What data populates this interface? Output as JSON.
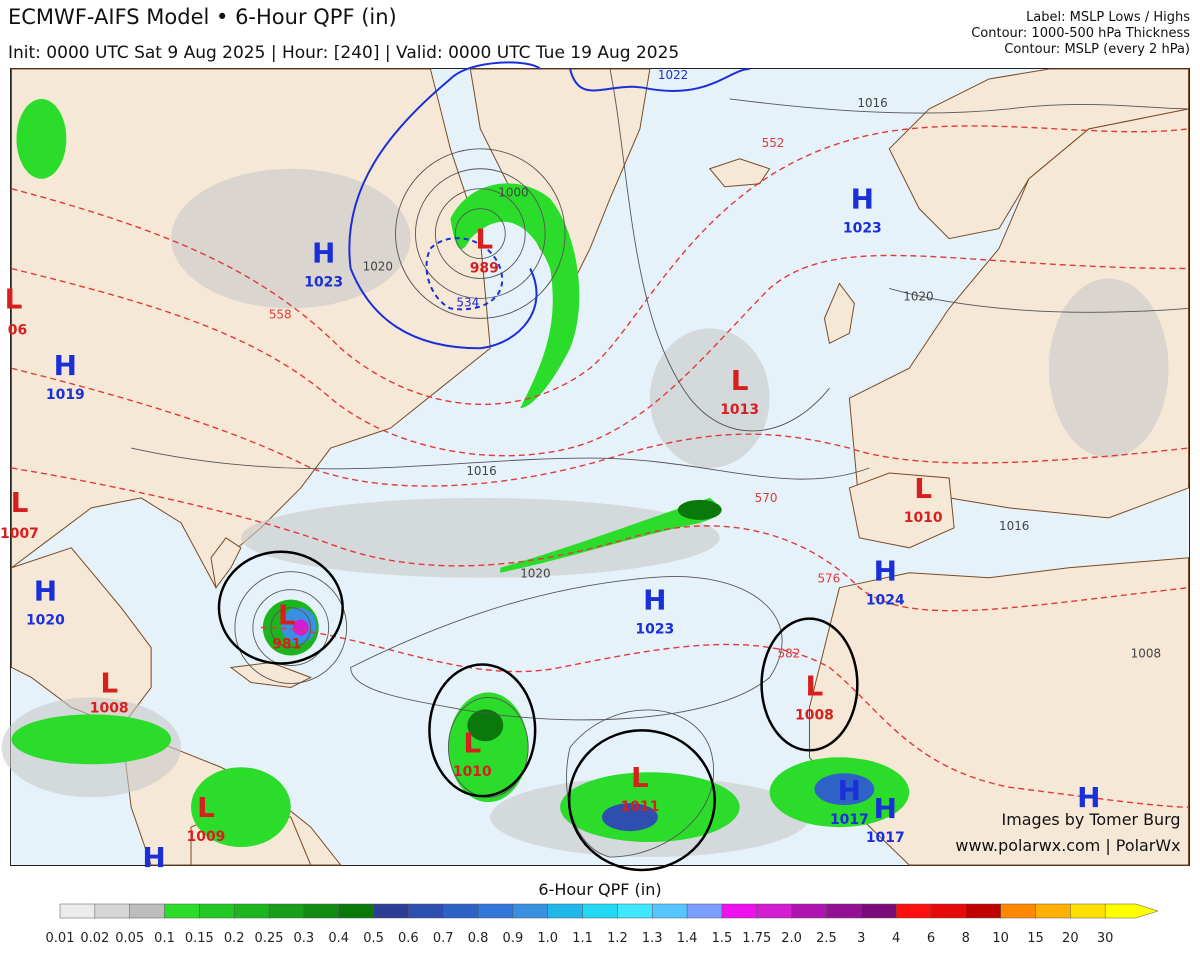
{
  "header": {
    "title": "ECMWF-AIFS Model • 6-Hour QPF (in)",
    "subtitle": "Init: 0000 UTC Sat 9 Aug 2025 | Hour: [240] | Valid: 0000 UTC Tue 19 Aug 2025",
    "legend_lines": [
      "Label: MSLP Lows / Highs",
      "Contour: 1000-500 hPa Thickness",
      "Contour: MSLP (every 2 hPa)"
    ]
  },
  "credits": {
    "line1": "Images by Tomer Burg",
    "line2": "www.polarwx.com | PolarWx"
  },
  "pressure_centers": [
    {
      "id": "l-989",
      "type": "L",
      "value": "989"
    },
    {
      "id": "h-1023-nw",
      "type": "H",
      "value": "1023"
    },
    {
      "id": "h-1023-ne",
      "type": "H",
      "value": "1023"
    },
    {
      "id": "h-1019",
      "type": "H",
      "value": "1019"
    },
    {
      "id": "l-1013",
      "type": "L",
      "value": "1013"
    },
    {
      "id": "l-1010-spain",
      "type": "L",
      "value": "1010"
    },
    {
      "id": "l-1007",
      "type": "L",
      "value": "1007"
    },
    {
      "id": "h-1020",
      "type": "H",
      "value": "1020"
    },
    {
      "id": "l-981",
      "type": "L",
      "value": "981"
    },
    {
      "id": "hh-1023",
      "type": "H",
      "value": "1023"
    },
    {
      "id": "h-1024",
      "type": "H",
      "value": "1024"
    },
    {
      "id": "l-1008-mex",
      "type": "L",
      "value": "1008"
    },
    {
      "id": "l-1010-atl",
      "type": "L",
      "value": "1010"
    },
    {
      "id": "l-1011",
      "type": "L",
      "value": "1011"
    },
    {
      "id": "l-1008-afr",
      "type": "L",
      "value": "1008"
    },
    {
      "id": "h-1017-a",
      "type": "H",
      "value": "1017"
    },
    {
      "id": "h-1017-b",
      "type": "H",
      "value": "1017"
    },
    {
      "id": "l-1009",
      "type": "L",
      "value": "1009"
    },
    {
      "id": "h-sw",
      "type": "H",
      "value": ""
    },
    {
      "id": "h-se",
      "type": "H",
      "value": ""
    },
    {
      "id": "l-006",
      "type": "L",
      "value": "06"
    }
  ],
  "contour_labels": [
    "1022",
    "1016",
    "552",
    "1000",
    "1020",
    "558",
    "534",
    "1020",
    "1016",
    "570",
    "1020",
    "576",
    "582",
    "1016",
    "1008"
  ],
  "colorbar": {
    "title": "6-Hour QPF (in)",
    "ticks": [
      "0.01",
      "0.02",
      "0.05",
      "0.1",
      "0.15",
      "0.2",
      "0.25",
      "0.3",
      "0.4",
      "0.5",
      "0.6",
      "0.7",
      "0.8",
      "0.9",
      "1.0",
      "1.1",
      "1.2",
      "1.3",
      "1.4",
      "1.5",
      "1.75",
      "2.0",
      "2.5",
      "3",
      "4",
      "6",
      "8",
      "10",
      "15",
      "20",
      "30"
    ],
    "colors": [
      "#ececec",
      "#d6d6d6",
      "#bdbdbd",
      "#2bdc2b",
      "#22c922",
      "#1db51d",
      "#17a017",
      "#118c11",
      "#0b780b",
      "#2b3d94",
      "#2d4fb0",
      "#2f62c6",
      "#3276d9",
      "#3a90e0",
      "#1fb8e8",
      "#22d8f2",
      "#3fe8ff",
      "#57c6ff",
      "#7b9dff",
      "#ee11ee",
      "#d21dd2",
      "#b014b0",
      "#950f95",
      "#7a0b7a",
      "#ff1010",
      "#e60a0a",
      "#c00000",
      "#ff8800",
      "#ffb000",
      "#ffe000",
      "#ffff00"
    ]
  },
  "colors": {
    "ocean": "#e6f2fa",
    "land": "#f6e8d6",
    "low_label": "#d81f1f",
    "high_label": "#1b2fd8",
    "thickness_contour": "#e23a3a",
    "mslp_contour": "#555555",
    "circle": "#000000"
  }
}
